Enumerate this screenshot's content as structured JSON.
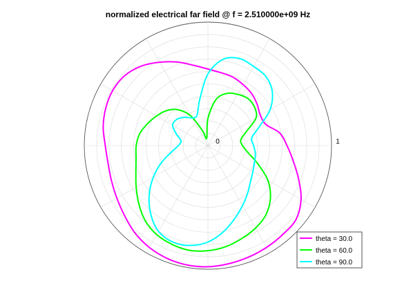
{
  "chart_data": {
    "type": "line",
    "projection": "polar",
    "title": "normalized electrical far field @ f = 2.510000e+09 Hz",
    "rlim": [
      0,
      1
    ],
    "r_tick_labels": [
      "0",
      "1"
    ],
    "grid": true,
    "legend_position": "bottom-right",
    "angle_unit": "degrees, counter-clockwise from the right-hand axis",
    "series": [
      {
        "name": "theta = 30.0",
        "color": "#ff00ff",
        "points": [
          [
            0,
            0.64
          ],
          [
            10,
            0.59
          ],
          [
            20,
            0.5
          ],
          [
            30,
            0.49
          ],
          [
            40,
            0.52
          ],
          [
            50,
            0.55
          ],
          [
            60,
            0.57
          ],
          [
            70,
            0.59
          ],
          [
            80,
            0.6
          ],
          [
            90,
            0.62
          ],
          [
            100,
            0.66
          ],
          [
            110,
            0.72
          ],
          [
            120,
            0.78
          ],
          [
            130,
            0.84
          ],
          [
            140,
            0.88
          ],
          [
            150,
            0.89
          ],
          [
            160,
            0.88
          ],
          [
            170,
            0.86
          ],
          [
            180,
            0.83
          ],
          [
            190,
            0.82
          ],
          [
            200,
            0.83
          ],
          [
            210,
            0.85
          ],
          [
            220,
            0.88
          ],
          [
            230,
            0.92
          ],
          [
            240,
            0.95
          ],
          [
            250,
            0.97
          ],
          [
            260,
            0.98
          ],
          [
            270,
            0.98
          ],
          [
            280,
            0.97
          ],
          [
            290,
            0.96
          ],
          [
            300,
            0.95
          ],
          [
            310,
            0.94
          ],
          [
            320,
            0.93
          ],
          [
            330,
            0.87
          ],
          [
            340,
            0.78
          ],
          [
            350,
            0.7
          ]
        ]
      },
      {
        "name": "theta = 60.0",
        "color": "#00ff00",
        "points": [
          [
            0,
            0.28
          ],
          [
            10,
            0.27
          ],
          [
            20,
            0.33
          ],
          [
            30,
            0.45
          ],
          [
            40,
            0.49
          ],
          [
            50,
            0.5
          ],
          [
            60,
            0.48
          ],
          [
            70,
            0.45
          ],
          [
            80,
            0.38
          ],
          [
            90,
            0.22
          ],
          [
            100,
            0.06
          ],
          [
            110,
            0.13
          ],
          [
            120,
            0.28
          ],
          [
            130,
            0.38
          ],
          [
            140,
            0.44
          ],
          [
            150,
            0.48
          ],
          [
            160,
            0.52
          ],
          [
            170,
            0.56
          ],
          [
            180,
            0.58
          ],
          [
            190,
            0.59
          ],
          [
            200,
            0.62
          ],
          [
            210,
            0.67
          ],
          [
            220,
            0.73
          ],
          [
            230,
            0.79
          ],
          [
            240,
            0.83
          ],
          [
            250,
            0.85
          ],
          [
            260,
            0.86
          ],
          [
            270,
            0.85
          ],
          [
            280,
            0.83
          ],
          [
            290,
            0.8
          ],
          [
            300,
            0.77
          ],
          [
            310,
            0.73
          ],
          [
            320,
            0.66
          ],
          [
            330,
            0.56
          ],
          [
            340,
            0.43
          ],
          [
            350,
            0.33
          ]
        ]
      },
      {
        "name": "theta = 90.0",
        "color": "#00ffff",
        "points": [
          [
            0,
            0.37
          ],
          [
            10,
            0.36
          ],
          [
            20,
            0.44
          ],
          [
            30,
            0.58
          ],
          [
            40,
            0.68
          ],
          [
            50,
            0.73
          ],
          [
            60,
            0.74
          ],
          [
            70,
            0.75
          ],
          [
            80,
            0.71
          ],
          [
            90,
            0.58
          ],
          [
            100,
            0.38
          ],
          [
            110,
            0.26
          ],
          [
            120,
            0.26
          ],
          [
            130,
            0.3
          ],
          [
            140,
            0.33
          ],
          [
            150,
            0.33
          ],
          [
            160,
            0.27
          ],
          [
            170,
            0.22
          ],
          [
            180,
            0.24
          ],
          [
            190,
            0.3
          ],
          [
            200,
            0.4
          ],
          [
            210,
            0.51
          ],
          [
            220,
            0.62
          ],
          [
            230,
            0.72
          ],
          [
            240,
            0.8
          ],
          [
            250,
            0.83
          ],
          [
            260,
            0.82
          ],
          [
            270,
            0.78
          ],
          [
            280,
            0.71
          ],
          [
            290,
            0.63
          ],
          [
            300,
            0.56
          ],
          [
            310,
            0.5
          ],
          [
            320,
            0.45
          ],
          [
            330,
            0.42
          ],
          [
            340,
            0.4
          ],
          [
            350,
            0.39
          ]
        ]
      }
    ]
  }
}
